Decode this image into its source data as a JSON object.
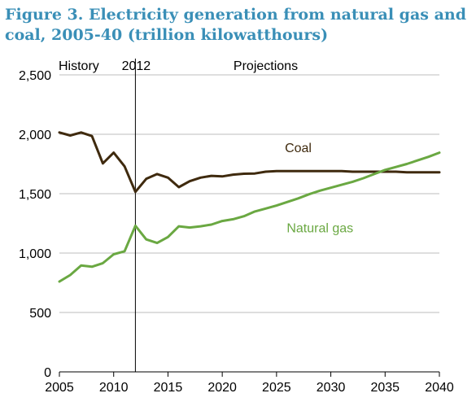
{
  "chart_data": {
    "type": "line",
    "title": "Figure 3. Electricity generation from natural gas and coal, 2005-40 (trillion kilowatthours)",
    "xlabel": "",
    "ylabel": "",
    "xlim": [
      2005,
      2040
    ],
    "ylim": [
      0,
      2500
    ],
    "x_ticks": [
      "2005",
      "2010",
      "2015",
      "2020",
      "2025",
      "2030",
      "2035",
      "2040"
    ],
    "y_ticks": [
      "0",
      "500",
      "1,000",
      "1,500",
      "2,000",
      "2,500"
    ],
    "grid": "horizontal",
    "annotations": {
      "history": "History",
      "history_year": "2012",
      "projections": "Projections"
    },
    "x": [
      2005,
      2006,
      2007,
      2008,
      2009,
      2010,
      2011,
      2012,
      2013,
      2014,
      2015,
      2016,
      2017,
      2018,
      2019,
      2020,
      2021,
      2022,
      2023,
      2024,
      2025,
      2026,
      2027,
      2028,
      2029,
      2030,
      2031,
      2032,
      2033,
      2034,
      2035,
      2036,
      2037,
      2038,
      2039,
      2040
    ],
    "series": [
      {
        "name": "Coal",
        "color": "#3f2a0e",
        "values": [
          2015,
          1990,
          2015,
          1985,
          1755,
          1845,
          1730,
          1515,
          1625,
          1665,
          1635,
          1555,
          1605,
          1635,
          1650,
          1645,
          1660,
          1668,
          1670,
          1685,
          1690,
          1690,
          1690,
          1690,
          1690,
          1690,
          1690,
          1685,
          1685,
          1685,
          1685,
          1685,
          1680,
          1680,
          1680,
          1680
        ]
      },
      {
        "name": "Natural gas",
        "color": "#6aa842",
        "values": [
          760,
          815,
          895,
          885,
          915,
          990,
          1015,
          1230,
          1115,
          1085,
          1135,
          1225,
          1215,
          1225,
          1240,
          1270,
          1285,
          1310,
          1350,
          1375,
          1400,
          1430,
          1460,
          1495,
          1525,
          1550,
          1575,
          1600,
          1630,
          1665,
          1700,
          1725,
          1750,
          1780,
          1810,
          1845
        ]
      }
    ]
  }
}
